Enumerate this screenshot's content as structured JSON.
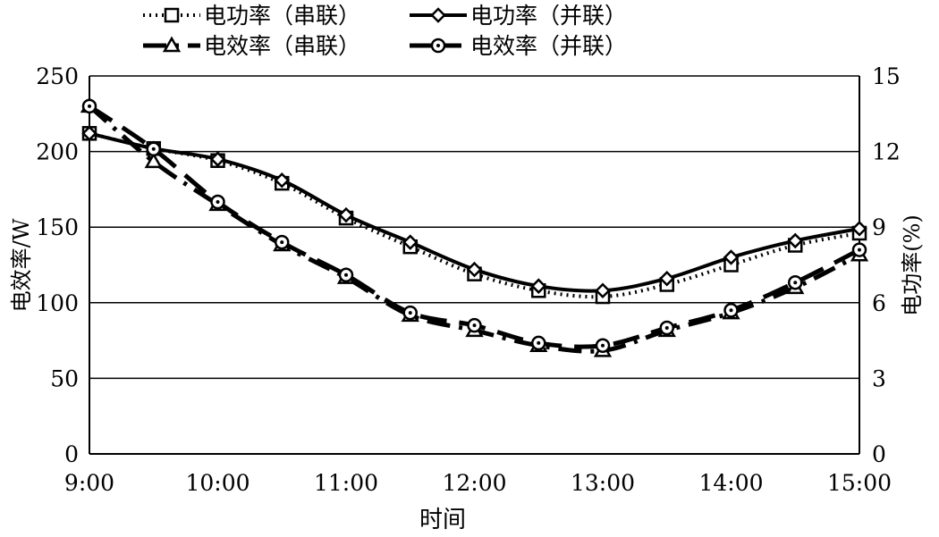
{
  "chart_data": {
    "type": "line",
    "title": "",
    "xlabel": "时间",
    "ylabel_left": "电效率/W",
    "ylabel_right": "电功率(%)",
    "ylim_left": [
      0,
      250
    ],
    "ylim_right": [
      0,
      15
    ],
    "yticks_left": [
      "0",
      "50",
      "100",
      "150",
      "200",
      "250"
    ],
    "yticks_right": [
      "0",
      "3",
      "6",
      "9",
      "12",
      "15"
    ],
    "xtick_labels": [
      "9:00",
      "10:00",
      "11:00",
      "12:00",
      "13:00",
      "14:00",
      "15:00"
    ],
    "x": [
      "9:00",
      "9:30",
      "10:00",
      "10:30",
      "11:00",
      "11:30",
      "12:00",
      "12:30",
      "13:00",
      "13:30",
      "14:00",
      "14:30",
      "15:00"
    ],
    "grid": "horizontal",
    "legend_position": "top",
    "series": [
      {
        "name": "电功率（串联）",
        "axis": "left",
        "marker": "square",
        "line": "dotted",
        "values": [
          212,
          202,
          194,
          179,
          156,
          137,
          119,
          108,
          104,
          112,
          125,
          138,
          146
        ]
      },
      {
        "name": "电功率（并联）",
        "axis": "left",
        "marker": "diamond",
        "line": "solid",
        "values": [
          212,
          202,
          195,
          181,
          158,
          140,
          122,
          111,
          108,
          116,
          130,
          141,
          149
        ]
      },
      {
        "name": "电效率（串联）",
        "axis": "right",
        "marker": "triangle",
        "line": "dashdot",
        "values": [
          13.8,
          11.6,
          9.9,
          8.3,
          7.0,
          5.5,
          4.9,
          4.3,
          4.1,
          4.9,
          5.6,
          6.6,
          7.9
        ]
      },
      {
        "name": "电效率（并联）",
        "axis": "right",
        "marker": "circle",
        "line": "dashed",
        "values": [
          13.8,
          12.1,
          10.0,
          8.4,
          7.1,
          5.6,
          5.1,
          4.4,
          4.3,
          5.0,
          5.7,
          6.8,
          8.1
        ]
      }
    ]
  }
}
